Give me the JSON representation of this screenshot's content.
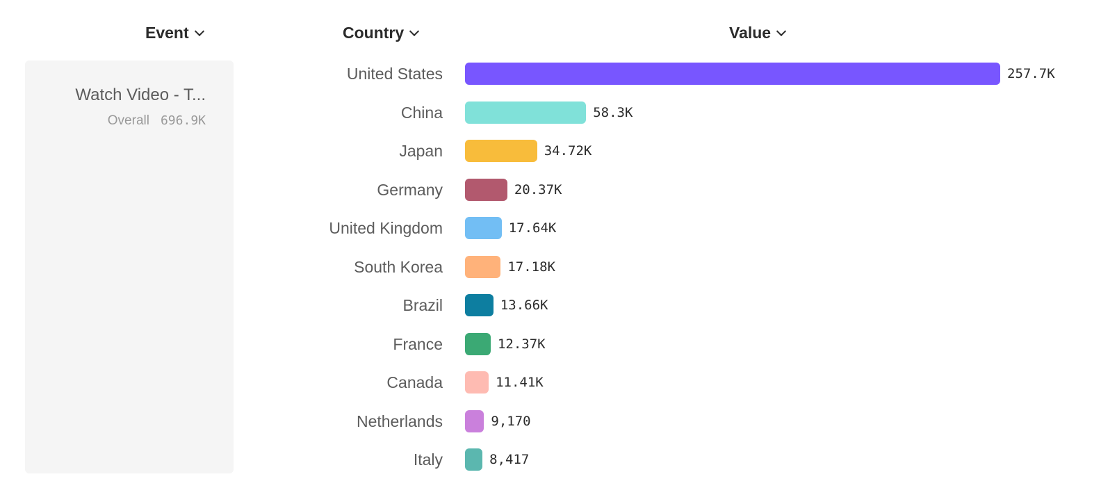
{
  "headers": {
    "event": "Event",
    "country": "Country",
    "value": "Value"
  },
  "event": {
    "name": "Watch Video - T...",
    "overall_label": "Overall",
    "overall_value": "696.9K"
  },
  "chart_data": {
    "type": "bar",
    "orientation": "horizontal",
    "categories": [
      "United States",
      "China",
      "Japan",
      "Germany",
      "United Kingdom",
      "South Korea",
      "Brazil",
      "France",
      "Canada",
      "Netherlands",
      "Italy"
    ],
    "values": [
      257700,
      58300,
      34720,
      20370,
      17640,
      17180,
      13660,
      12370,
      11410,
      9170,
      8417
    ],
    "labels": [
      "257.7K",
      "58.3K",
      "34.72K",
      "20.37K",
      "17.64K",
      "17.18K",
      "13.66K",
      "12.37K",
      "11.41K",
      "9,170",
      "8,417"
    ],
    "colors": [
      "#7856FF",
      "#80E1D9",
      "#F8BC3B",
      "#B2596E",
      "#72BEF4",
      "#FFB27A",
      "#0D7EA0",
      "#3BA974",
      "#FEBBB2",
      "#CA80DC",
      "#5BB7AF"
    ],
    "xlim": [
      0,
      257700
    ],
    "grid": false
  }
}
